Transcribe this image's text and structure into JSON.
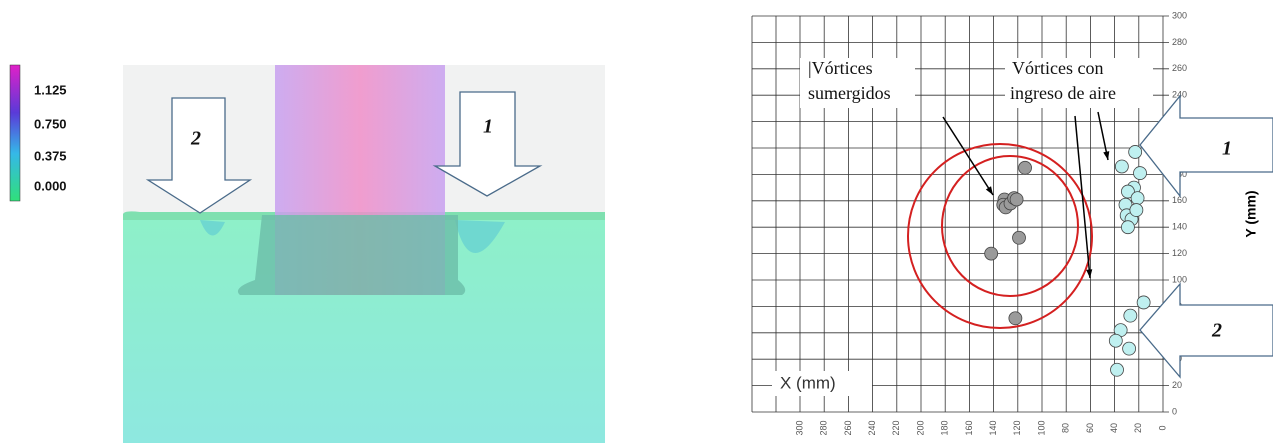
{
  "left_panel": {
    "colorbar_labels": [
      "1.125",
      "0.750",
      "0.375",
      "0.000"
    ],
    "arrow_labels": [
      "2",
      "1"
    ]
  },
  "right_panel": {
    "annotations": [
      "|Vórtices",
      "sumergidos",
      "Vórtices con",
      "ingreso de aire"
    ],
    "x_label": "X (mm)",
    "y_label": "Y (mm)",
    "xlim": [
      0,
      300
    ],
    "ylim": [
      0,
      300
    ],
    "xticks": [
      300,
      280,
      260,
      240,
      220,
      200,
      180,
      160,
      140,
      120,
      100,
      80,
      60,
      40,
      20,
      0
    ],
    "yticks": [
      0,
      20,
      40,
      60,
      80,
      100,
      120,
      140,
      160,
      180,
      200,
      220,
      240,
      260,
      280,
      300
    ],
    "submerged": {
      "x": [
        114,
        131,
        132,
        130,
        126,
        123,
        121,
        119,
        142,
        122
      ],
      "y": [
        185,
        161,
        157,
        155,
        158,
        162,
        161,
        132,
        120,
        71
      ]
    },
    "air_entry": {
      "x": [
        34,
        23,
        19,
        24,
        29,
        21,
        31,
        30,
        26,
        29,
        22,
        16,
        27,
        35,
        39,
        28,
        38
      ],
      "y": [
        186,
        197,
        181,
        170,
        167,
        162,
        157,
        149,
        146,
        140,
        153,
        83,
        73,
        62,
        54,
        48,
        32
      ]
    },
    "arrow_labels": [
      "1",
      "2"
    ]
  }
}
